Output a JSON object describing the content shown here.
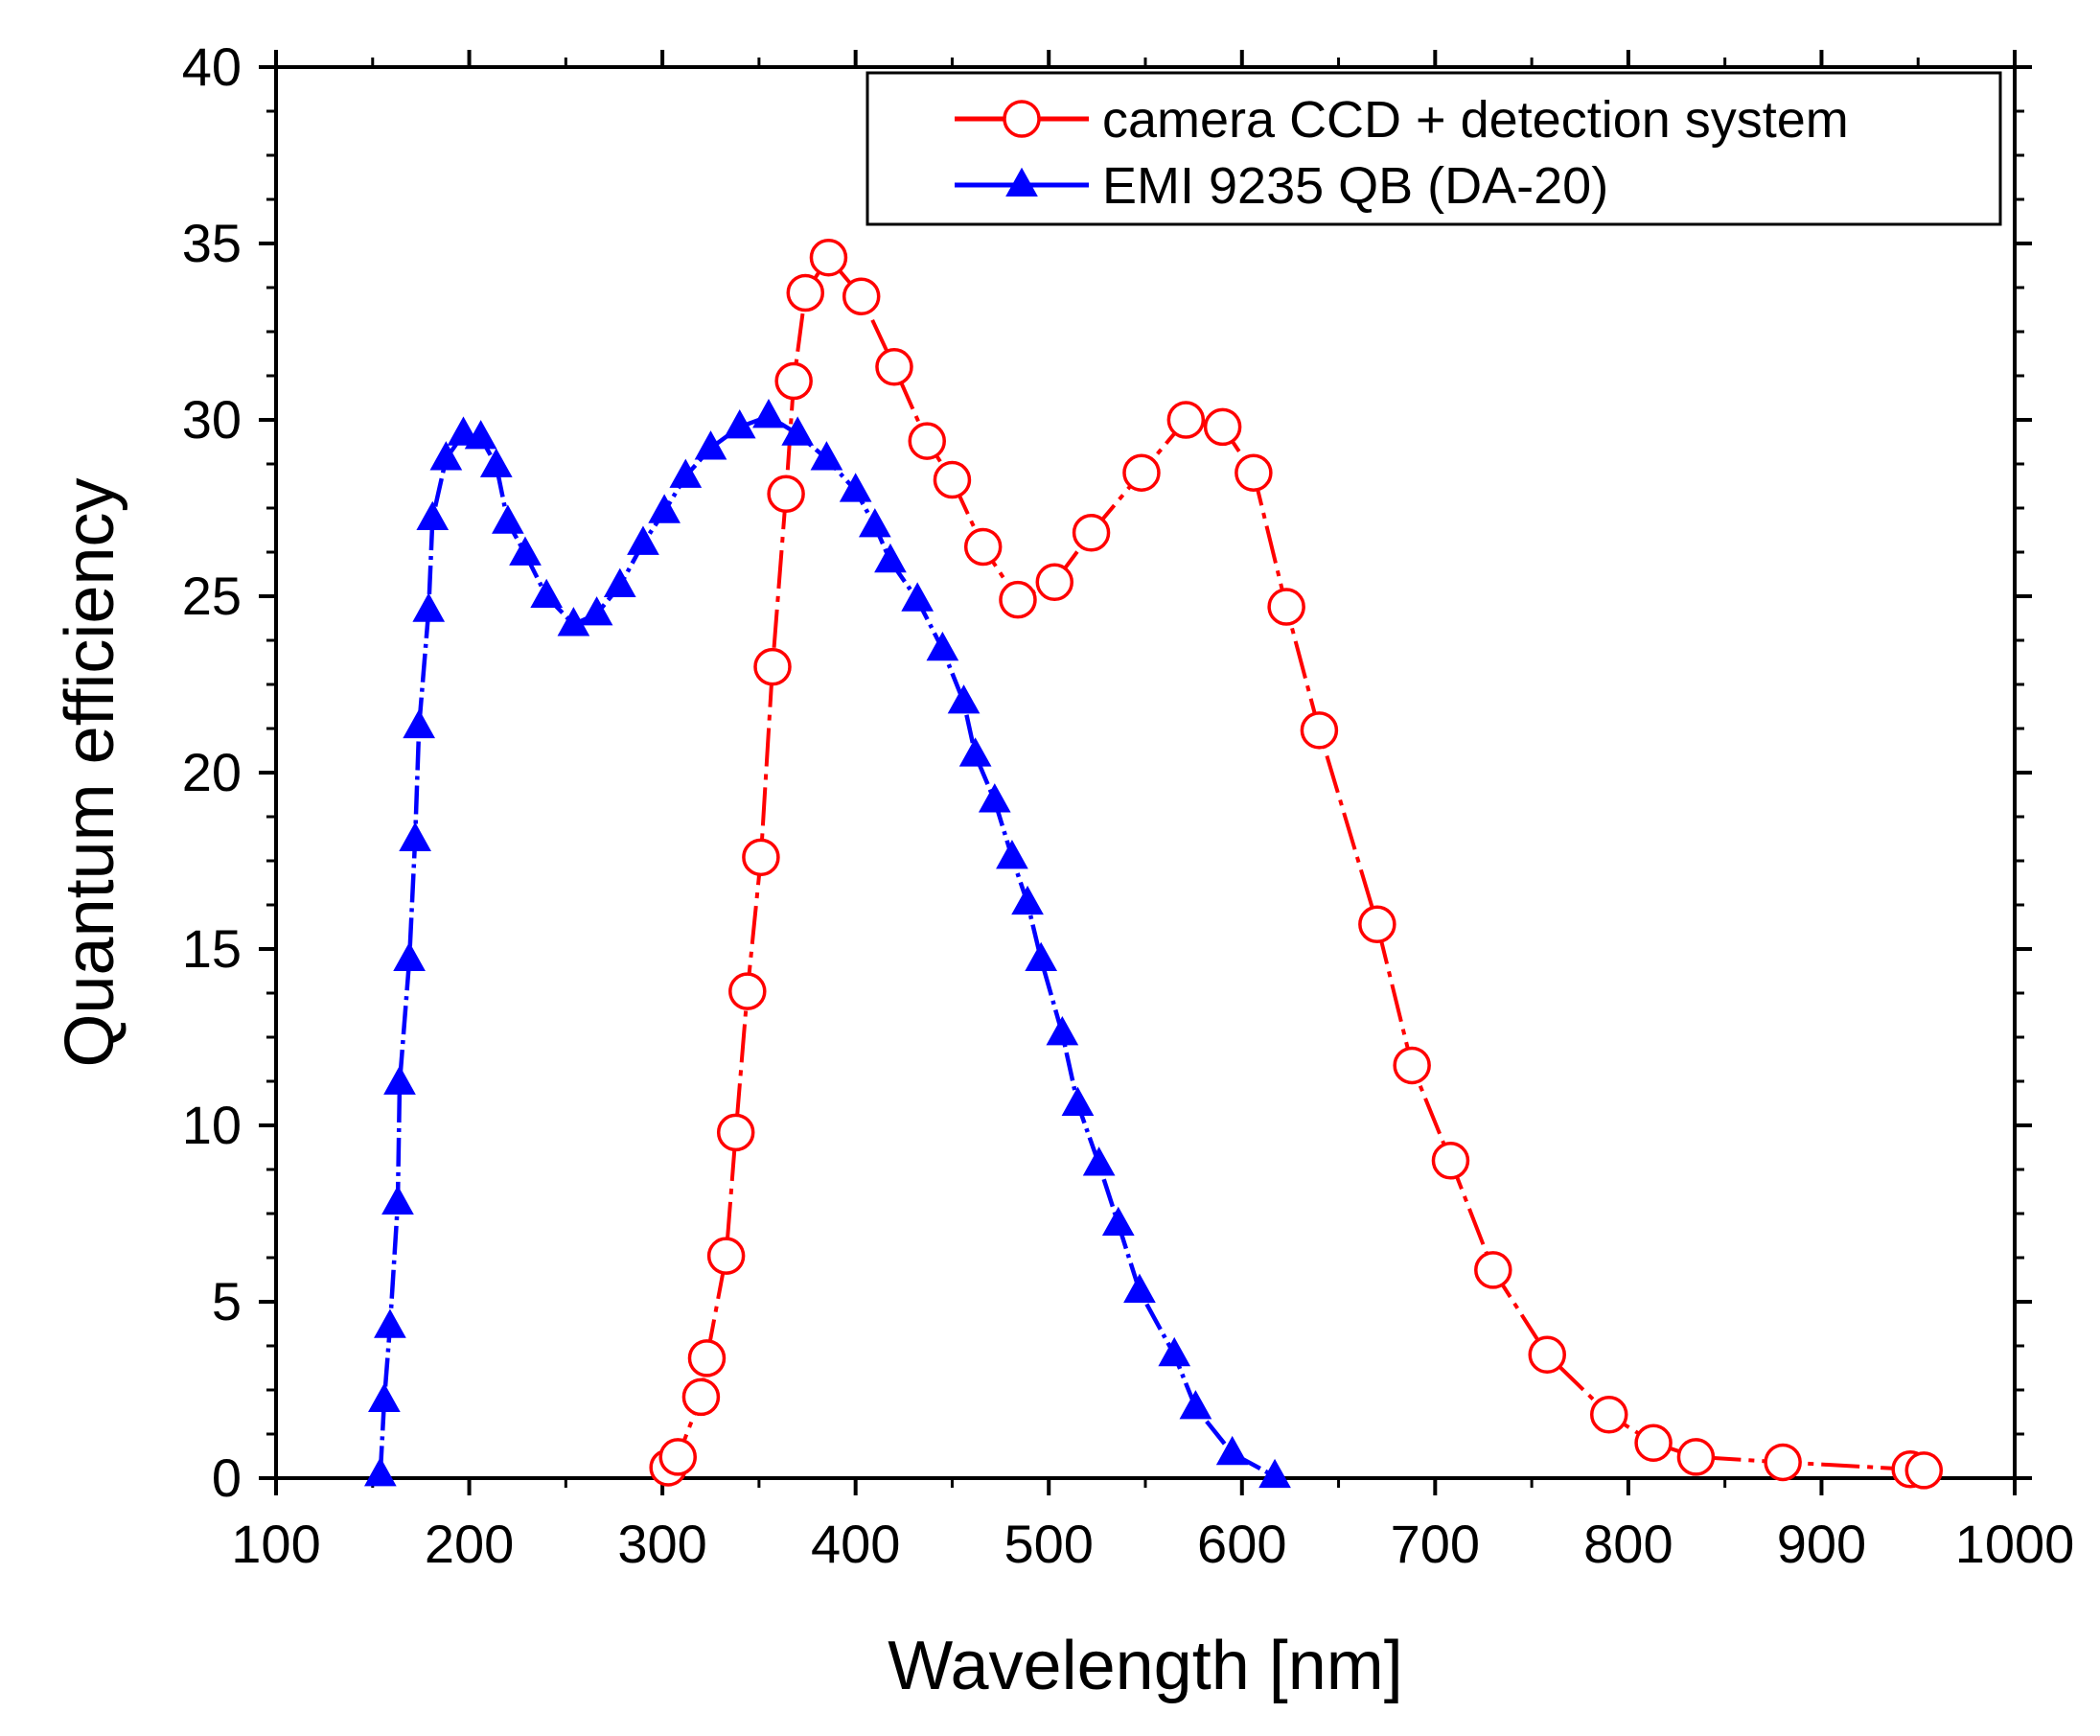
{
  "chart_data": {
    "type": "line",
    "xlabel": "Wavelength [nm]",
    "ylabel": "Quantum efficiency",
    "xlim": [
      100,
      1000
    ],
    "ylim": [
      0,
      40
    ],
    "x_ticks": [
      100,
      200,
      300,
      400,
      500,
      600,
      700,
      800,
      900,
      1000
    ],
    "y_ticks": [
      0,
      5,
      10,
      15,
      20,
      25,
      30,
      35,
      40
    ],
    "grid": false,
    "legend_position": "top-right",
    "series": [
      {
        "name": "camera CCD + detection system",
        "color": "#ff0000",
        "marker": "open-circle",
        "points": [
          [
            303,
            0.3
          ],
          [
            308,
            0.6
          ],
          [
            320,
            2.3
          ],
          [
            323,
            3.4
          ],
          [
            333,
            6.3
          ],
          [
            338,
            9.8
          ],
          [
            344,
            13.8
          ],
          [
            351,
            17.6
          ],
          [
            357,
            23.0
          ],
          [
            364,
            27.9
          ],
          [
            368,
            31.1
          ],
          [
            374,
            33.6
          ],
          [
            386,
            34.6
          ],
          [
            403,
            33.5
          ],
          [
            420,
            31.5
          ],
          [
            437,
            29.4
          ],
          [
            450,
            28.3
          ],
          [
            466,
            26.4
          ],
          [
            484,
            24.9
          ],
          [
            503,
            25.4
          ],
          [
            522,
            26.8
          ],
          [
            548,
            28.5
          ],
          [
            571,
            30.0
          ],
          [
            590,
            29.8
          ],
          [
            606,
            28.5
          ],
          [
            623,
            24.7
          ],
          [
            640,
            21.2
          ],
          [
            670,
            15.7
          ],
          [
            688,
            11.7
          ],
          [
            708,
            9.0
          ],
          [
            730,
            5.9
          ],
          [
            758,
            3.5
          ],
          [
            790,
            1.8
          ],
          [
            813,
            1.0
          ],
          [
            835,
            0.6
          ],
          [
            880,
            0.45
          ],
          [
            946,
            0.25
          ],
          [
            953,
            0.22
          ]
        ]
      },
      {
        "name": "EMI 9235 QB (DA-20)",
        "color": "#0000ff",
        "marker": "filled-triangle",
        "points": [
          [
            154,
            0.1
          ],
          [
            156,
            2.2
          ],
          [
            159,
            4.3
          ],
          [
            163,
            7.8
          ],
          [
            164,
            11.2
          ],
          [
            169,
            14.7
          ],
          [
            172,
            18.1
          ],
          [
            174,
            21.3
          ],
          [
            179,
            24.6
          ],
          [
            181,
            27.2
          ],
          [
            188,
            28.9
          ],
          [
            197,
            29.6
          ],
          [
            206,
            29.5
          ],
          [
            214,
            28.7
          ],
          [
            220,
            27.1
          ],
          [
            229,
            26.2
          ],
          [
            240,
            25.0
          ],
          [
            254,
            24.2
          ],
          [
            266,
            24.5
          ],
          [
            278,
            25.3
          ],
          [
            290,
            26.5
          ],
          [
            301,
            27.4
          ],
          [
            312,
            28.4
          ],
          [
            325,
            29.2
          ],
          [
            340,
            29.8
          ],
          [
            355,
            30.1
          ],
          [
            370,
            29.6
          ],
          [
            385,
            28.9
          ],
          [
            400,
            28.0
          ],
          [
            410,
            27.0
          ],
          [
            418,
            26.0
          ],
          [
            432,
            24.9
          ],
          [
            445,
            23.5
          ],
          [
            456,
            22.0
          ],
          [
            462,
            20.5
          ],
          [
            472,
            19.2
          ],
          [
            481,
            17.6
          ],
          [
            489,
            16.3
          ],
          [
            496,
            14.7
          ],
          [
            507,
            12.6
          ],
          [
            515,
            10.6
          ],
          [
            526,
            8.9
          ],
          [
            536,
            7.2
          ],
          [
            547,
            5.3
          ],
          [
            565,
            3.5
          ],
          [
            576,
            2.0
          ],
          [
            595,
            0.7
          ],
          [
            617,
            0.05
          ]
        ]
      }
    ]
  }
}
